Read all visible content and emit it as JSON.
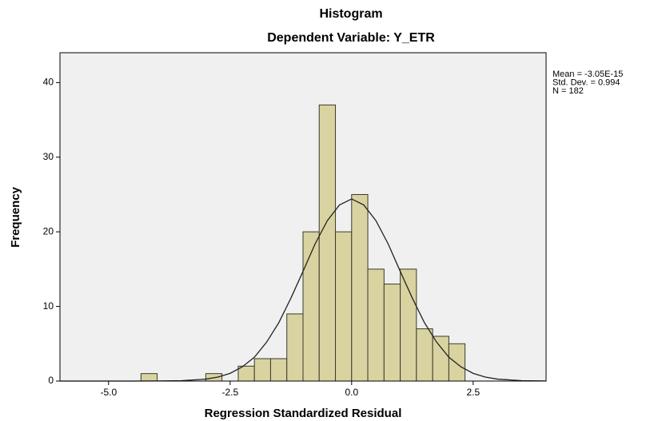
{
  "chart_data": {
    "type": "histogram",
    "title": "Histogram",
    "subtitle": "Dependent Variable: Y_ETR",
    "x_label": "Regression Standardized Residual",
    "y_label": "Frequency",
    "annotations": [
      "Mean = -3.05E-15",
      "Std. Dev. = 0.994",
      "N = 182"
    ],
    "bins": [
      -4.333,
      -4,
      -3.667,
      -3.333,
      -3,
      -2.667,
      -2.333,
      -2,
      -1.667,
      -1.333,
      -1,
      -0.667,
      -0.333,
      0,
      0.333,
      0.667,
      1,
      1.333,
      1.667,
      2,
      2.333
    ],
    "counts": [
      1,
      0,
      0,
      0,
      1,
      0,
      2,
      3,
      3,
      9,
      20,
      37,
      20,
      25,
      15,
      13,
      15,
      7,
      6,
      5
    ],
    "color": "#d9d3a1",
    "normal_curve": {
      "x": [
        -6,
        -5.5,
        -5,
        -4.5,
        -4,
        -3.5,
        -3,
        -2.75,
        -2.5,
        -2.25,
        -2,
        -1.75,
        -1.5,
        -1.25,
        -1,
        -0.75,
        -0.5,
        -0.25,
        0,
        0.25,
        0.5,
        0.75,
        1,
        1.25,
        1.5,
        1.75,
        2,
        2.25,
        2.5,
        2.75,
        3,
        3.5,
        4
      ],
      "values": [
        0,
        0,
        0,
        0,
        0.01,
        0.05,
        0.26,
        0.53,
        1.03,
        1.9,
        3.2,
        5.2,
        7.8,
        11.1,
        14.7,
        18.4,
        21.5,
        23.6,
        24.4,
        23.6,
        21.5,
        18.4,
        14.7,
        11.1,
        7.8,
        5.2,
        3.2,
        1.9,
        1.03,
        0.53,
        0.26,
        0.05,
        0.01
      ]
    },
    "xlim": [
      -6,
      4
    ],
    "ylim": [
      0,
      44
    ],
    "xticks": [
      {
        "value": -5,
        "label": "-5.0"
      },
      -2.5,
      {
        "value": 0,
        "label": "0.0"
      },
      2.5
    ],
    "yticks": [
      0,
      10,
      20,
      30,
      40
    ]
  }
}
